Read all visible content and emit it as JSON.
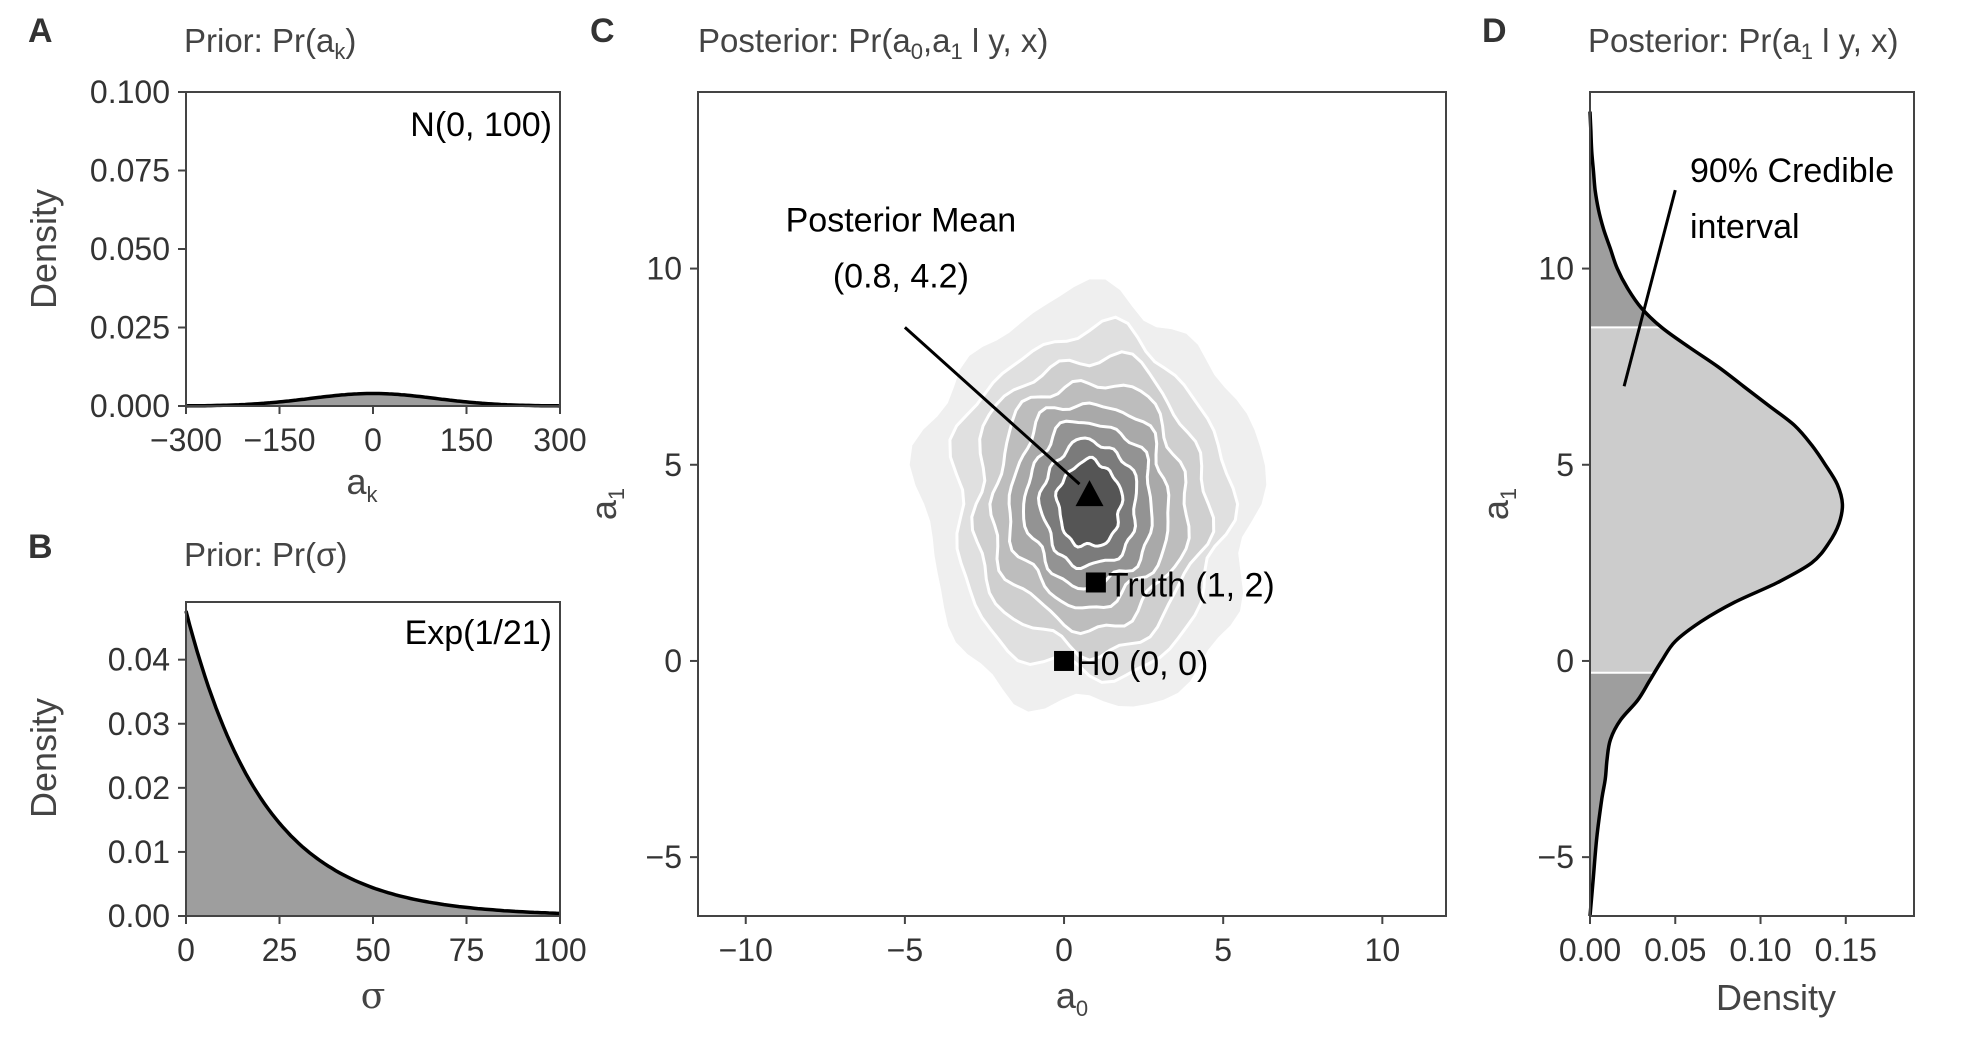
{
  "chart_data": [
    {
      "panel": "A",
      "type": "area",
      "title": "Prior: Pr(a",
      "title_sub": "k",
      "title_end": ")",
      "xlabel": "a",
      "xlabel_sub": "k",
      "ylabel": "Density",
      "xlim": [
        -300,
        300
      ],
      "ylim": [
        0,
        0.1
      ],
      "xticks": [
        "−300",
        "−150",
        "0",
        "150",
        "300"
      ],
      "xtick_values": [
        -300,
        -150,
        0,
        150,
        300
      ],
      "yticks": [
        "0.000",
        "0.025",
        "0.050",
        "0.075",
        "0.100"
      ],
      "ytick_values": [
        0,
        0.025,
        0.05,
        0.075,
        0.1
      ],
      "distribution": {
        "family": "normal",
        "mean": 0,
        "sd": 100
      },
      "annotation": "N(0, 100)",
      "fill_color": "#9e9e9e",
      "line_color": "#000000"
    },
    {
      "panel": "B",
      "type": "area",
      "title": "Prior: Pr(σ)",
      "xlabel": "σ",
      "ylabel": "Density",
      "xlim": [
        0,
        100
      ],
      "ylim": [
        0,
        0.049
      ],
      "xticks": [
        "0",
        "25",
        "50",
        "75",
        "100"
      ],
      "xtick_values": [
        0,
        25,
        50,
        75,
        100
      ],
      "yticks": [
        "0.00",
        "0.01",
        "0.02",
        "0.03",
        "0.04"
      ],
      "ytick_values": [
        0,
        0.01,
        0.02,
        0.03,
        0.04
      ],
      "distribution": {
        "family": "exponential",
        "rate": 0.0476
      },
      "annotation": "Exp(1/21)",
      "fill_color": "#9e9e9e",
      "line_color": "#000000"
    },
    {
      "panel": "C",
      "type": "heatmap",
      "title": "Posterior: Pr(a",
      "title_sub1": "0",
      "title_mid": ",a",
      "title_sub2": "1",
      "title_end": " l y, x)",
      "xlabel": "a",
      "xlabel_sub": "0",
      "ylabel": "a",
      "ylabel_sub": "1",
      "xlim": [
        -11.5,
        12
      ],
      "ylim": [
        -6.5,
        14.5
      ],
      "xticks": [
        "−10",
        "−5",
        "0",
        "5",
        "10"
      ],
      "xtick_values": [
        -10,
        -5,
        0,
        5,
        10
      ],
      "yticks": [
        "−5",
        "0",
        "5",
        "10"
      ],
      "ytick_values": [
        -5,
        0,
        5,
        10
      ],
      "density_center": [
        0.8,
        4.0
      ],
      "contour_radii": [
        [
          5.3,
          5.3
        ],
        [
          4.3,
          4.4
        ],
        [
          3.65,
          3.75
        ],
        [
          3.05,
          3.15
        ],
        [
          2.5,
          2.6
        ],
        [
          2.0,
          2.1
        ],
        [
          1.5,
          1.6
        ],
        [
          1.0,
          1.1
        ]
      ],
      "fill_shades": [
        "#efefef",
        "#e0e0e0",
        "#cfcfcf",
        "#bdbdbd",
        "#a9a9a9",
        "#939393",
        "#7b7b7b",
        "#555555"
      ],
      "points": [
        {
          "label": "Posterior Mean",
          "value_label": "(0.8, 4.2)",
          "x": 0.8,
          "y": 4.2,
          "marker": "triangle"
        },
        {
          "label": "Truth (1, 2)",
          "x": 1,
          "y": 2,
          "marker": "square"
        },
        {
          "label": "H0 (0, 0)",
          "x": 0,
          "y": 0,
          "marker": "square"
        }
      ],
      "annotation_arrow_from": [
        -5.0,
        8.5
      ]
    },
    {
      "panel": "D",
      "type": "area",
      "title": "Posterior: Pr(a",
      "title_sub": "1",
      "title_end": " l y, x)",
      "xlabel": "Density",
      "ylabel": "a",
      "ylabel_sub": "1",
      "xlim": [
        0,
        0.19
      ],
      "ylim": [
        -6.5,
        14.5
      ],
      "xticks": [
        "0.00",
        "0.05",
        "0.10",
        "0.15"
      ],
      "xtick_values": [
        0,
        0.05,
        0.1,
        0.15
      ],
      "yticks": [
        "−5",
        "0",
        "5",
        "10"
      ],
      "ytick_values": [
        -5,
        0,
        5,
        10
      ],
      "density_y": [
        -6.5,
        -5.5,
        -4.5,
        -3.5,
        -3.0,
        -2.5,
        -2.0,
        -1.5,
        -1.0,
        -0.5,
        0.0,
        0.5,
        1.0,
        1.5,
        2.0,
        2.5,
        3.0,
        3.5,
        4.0,
        4.5,
        5.0,
        5.5,
        6.0,
        6.5,
        7.0,
        7.5,
        8.0,
        8.5,
        9.0,
        9.5,
        10.0,
        10.5,
        11.0,
        11.5,
        12.0,
        12.5,
        13.0,
        13.5,
        14.0
      ],
      "density_x": [
        0.0,
        0.002,
        0.004,
        0.007,
        0.009,
        0.01,
        0.012,
        0.018,
        0.028,
        0.035,
        0.042,
        0.05,
        0.065,
        0.085,
        0.11,
        0.13,
        0.14,
        0.146,
        0.148,
        0.145,
        0.138,
        0.13,
        0.12,
        0.105,
        0.09,
        0.075,
        0.058,
        0.042,
        0.03,
        0.022,
        0.016,
        0.012,
        0.008,
        0.005,
        0.003,
        0.002,
        0.001,
        0.0005,
        0.0
      ],
      "credible_interval": [
        -0.3,
        8.5
      ],
      "annotation": "90% Credible",
      "annotation_line2": "interval",
      "ci_fill": "#cccccc",
      "tail_fill": "#9e9e9e"
    }
  ]
}
